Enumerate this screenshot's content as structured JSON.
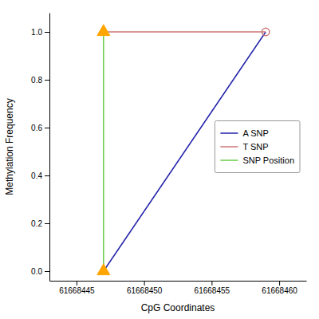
{
  "chart_data": {
    "type": "line",
    "x_label": "CpG Coordinates",
    "y_label": "Methylation Frequency",
    "series": [
      {
        "name": "A SNP",
        "color": "#2222aa",
        "x": [
          61668447,
          61668459
        ],
        "values": [
          0.0,
          1.0
        ]
      },
      {
        "name": "T SNP",
        "color": "#cc7777",
        "x": [
          61668447,
          61668459
        ],
        "values": [
          1.0,
          1.0
        ]
      },
      {
        "name": "SNP Position",
        "color": "#66cc44",
        "x": [
          61668447,
          61668447
        ],
        "values": [
          0.0,
          1.0
        ]
      },
      {
        "color": "#FFA500",
        "x": [
          61668447,
          61668447
        ],
        "values": [
          0.0,
          1.0
        ],
        "marker": "triangle",
        "line_style": "none"
      },
      {
        "color": "#cc7777",
        "x": [
          61668459
        ],
        "values": [
          1.0
        ],
        "marker": "open-circle",
        "line_style": "none"
      }
    ],
    "xlim": [
      61668443.0,
      61668462.0
    ],
    "ylim": [
      -0.04,
      1.08
    ],
    "xticks": [
      61668445,
      61668450,
      61668455,
      61668460
    ],
    "yticks": [
      {
        "value": 0.0,
        "label": "0.0"
      },
      0.2,
      0.4,
      0.6,
      0.8,
      {
        "value": 1.0,
        "label": "1.0"
      }
    ],
    "grid": false,
    "legend": "right"
  }
}
